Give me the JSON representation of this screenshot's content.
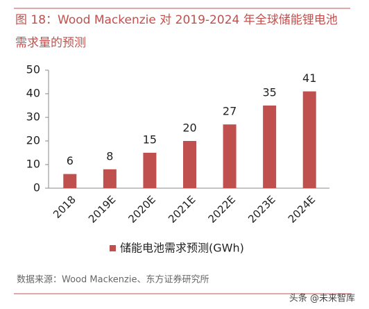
{
  "chart_data": {
    "type": "bar",
    "title": "图 18：Wood Mackenzie 对 2019-2024 年全球储能锂电池",
    "subtitle": "需求量的预测",
    "categories": [
      "2018",
      "2019E",
      "2020E",
      "2021E",
      "2022E",
      "2023E",
      "2024E"
    ],
    "series": [
      {
        "name": "储能电池需求预测(GWh)",
        "color": "#c0504d",
        "values": [
          6,
          8,
          15,
          20,
          27,
          35,
          41
        ]
      }
    ],
    "ylim": [
      0,
      50
    ],
    "yticks": [
      0,
      10,
      20,
      30,
      40,
      50
    ],
    "grid": false,
    "legend": "bottom",
    "source": "数据来源：Wood Mackenzie、东方证券研究所",
    "watermark": "头条 @未来智库"
  }
}
